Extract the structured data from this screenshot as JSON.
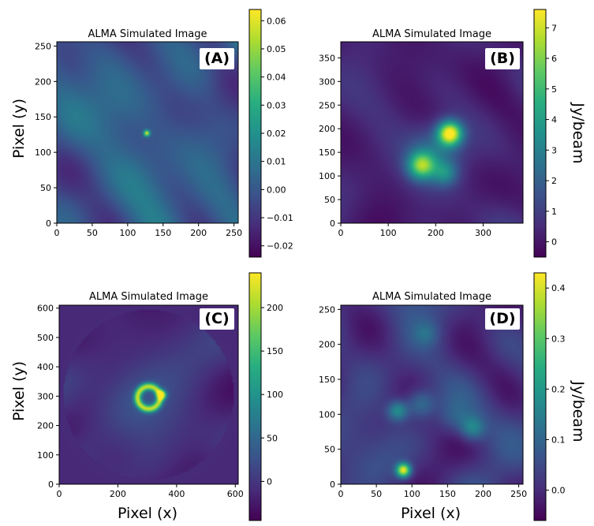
{
  "figure": {
    "ylabel_left": "Pixel (y)",
    "xlabel_bottom": "Pixel (x)",
    "colorbar_label": "Jy/beam",
    "colormap": "viridis",
    "colormap_stops": [
      "#440154",
      "#472c7a",
      "#3b528b",
      "#2c728e",
      "#21918c",
      "#28ae80",
      "#5ec962",
      "#addc30",
      "#fde725"
    ]
  },
  "chart_data": [
    {
      "type": "heatmap",
      "panel": "(A)",
      "title": "ALMA Simulated Image",
      "xlim": [
        0,
        256
      ],
      "ylim": [
        0,
        256
      ],
      "xticks": [
        0,
        50,
        100,
        150,
        200,
        250
      ],
      "yticks": [
        0,
        50,
        100,
        150,
        200,
        250
      ],
      "xtick_labels": [
        "0",
        "50",
        "100",
        "150",
        "200",
        "250"
      ],
      "ytick_labels": [
        "0",
        "50",
        "100",
        "150",
        "200",
        "250"
      ],
      "colorbar": {
        "range": [
          -0.024,
          0.064
        ],
        "ticks": [
          -0.02,
          -0.01,
          0.0,
          0.01,
          0.02,
          0.03,
          0.04,
          0.05,
          0.06
        ],
        "tick_labels": [
          "−0.02",
          "−0.01",
          "0.00",
          "0.01",
          "0.02",
          "0.03",
          "0.04",
          "0.05",
          "0.06"
        ],
        "label": ""
      },
      "background": 0.0,
      "noise": 0.006,
      "sources": [
        {
          "x": 127,
          "y": 127,
          "sigma": 3,
          "peak": 0.06
        }
      ]
    },
    {
      "type": "heatmap",
      "panel": "(B)",
      "title": "ALMA Simulated Image",
      "xlim": [
        0,
        384
      ],
      "ylim": [
        0,
        384
      ],
      "xticks": [
        0,
        100,
        200,
        300
      ],
      "yticks": [
        0,
        50,
        100,
        150,
        200,
        250,
        300,
        350
      ],
      "xtick_labels": [
        "0",
        "100",
        "200",
        "300"
      ],
      "ytick_labels": [
        "0",
        "50",
        "100",
        "150",
        "200",
        "250",
        "300",
        "350"
      ],
      "colorbar": {
        "range": [
          -0.5,
          7.6
        ],
        "ticks": [
          0,
          1,
          2,
          3,
          4,
          5,
          6,
          7
        ],
        "tick_labels": [
          "0",
          "1",
          "2",
          "3",
          "4",
          "5",
          "6",
          "7"
        ],
        "label": "Jy/beam"
      },
      "background": 0.3,
      "noise": 0.25,
      "sources": [
        {
          "x": 230,
          "y": 190,
          "sigma": 18,
          "peak": 7.2
        },
        {
          "x": 170,
          "y": 122,
          "sigma": 20,
          "peak": 4.8
        },
        {
          "x": 200,
          "y": 150,
          "sigma": 40,
          "peak": 2.0
        },
        {
          "x": 220,
          "y": 105,
          "sigma": 18,
          "peak": 2.2
        }
      ]
    },
    {
      "type": "heatmap",
      "panel": "(C)",
      "title": "ALMA Simulated Image",
      "xlim": [
        0,
        610
      ],
      "ylim": [
        0,
        610
      ],
      "xticks": [
        0,
        200,
        400,
        600
      ],
      "yticks": [
        0,
        100,
        200,
        300,
        400,
        500,
        600
      ],
      "xtick_labels": [
        "0",
        "200",
        "400",
        "600"
      ],
      "ytick_labels": [
        "0",
        "100",
        "200",
        "300",
        "400",
        "500",
        "600"
      ],
      "colorbar": {
        "range": [
          -45,
          240
        ],
        "ticks": [
          0,
          50,
          100,
          150,
          200
        ],
        "tick_labels": [
          "0",
          "50",
          "100",
          "150",
          "200"
        ],
        "label": ""
      },
      "background": -10,
      "noise": 8,
      "disk": {
        "x": 305,
        "y": 305,
        "r": 290,
        "inside": 0
      },
      "ring": {
        "x": 305,
        "y": 295,
        "r": 38,
        "width": 9,
        "peak": 190
      },
      "sources": [
        {
          "x": 350,
          "y": 305,
          "sigma": 10,
          "peak": 210
        }
      ]
    },
    {
      "type": "heatmap",
      "panel": "(D)",
      "title": "ALMA Simulated Image",
      "xlim": [
        0,
        256
      ],
      "ylim": [
        0,
        256
      ],
      "xticks": [
        0,
        50,
        100,
        150,
        200,
        250
      ],
      "yticks": [
        0,
        50,
        100,
        150,
        200,
        250
      ],
      "xtick_labels": [
        "0",
        "50",
        "100",
        "150",
        "200",
        "250"
      ],
      "ytick_labels": [
        "0",
        "50",
        "100",
        "150",
        "200",
        "250"
      ],
      "colorbar": {
        "range": [
          -0.06,
          0.43
        ],
        "ticks": [
          0.0,
          0.1,
          0.2,
          0.3,
          0.4
        ],
        "tick_labels": [
          "0.0",
          "0.1",
          "0.2",
          "0.3",
          "0.4"
        ],
        "label": "Jy/beam"
      },
      "background": 0.02,
      "noise": 0.025,
      "sources": [
        {
          "x": 88,
          "y": 20,
          "sigma": 7,
          "peak": 0.4
        },
        {
          "x": 80,
          "y": 105,
          "sigma": 10,
          "peak": 0.17
        },
        {
          "x": 112,
          "y": 115,
          "sigma": 14,
          "peak": 0.12
        },
        {
          "x": 185,
          "y": 80,
          "sigma": 12,
          "peak": 0.14
        },
        {
          "x": 160,
          "y": 95,
          "sigma": 16,
          "peak": 0.06
        },
        {
          "x": 120,
          "y": 215,
          "sigma": 12,
          "peak": 0.06
        }
      ]
    }
  ]
}
